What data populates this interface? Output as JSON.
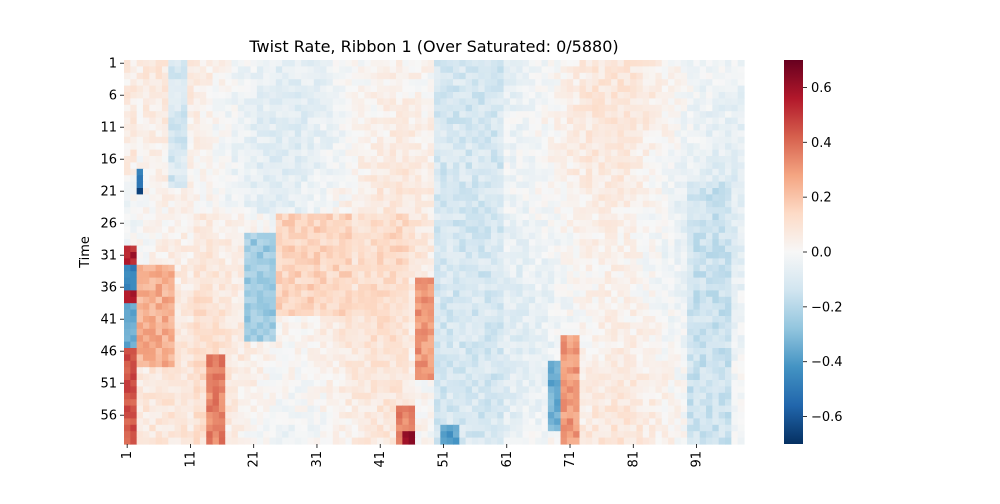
{
  "chart_data": {
    "type": "heatmap",
    "title": "Twist Rate, Ribbon 1 (Over Saturated: 0/5880)",
    "xlabel": "",
    "ylabel": "Time",
    "x_count": 98,
    "y_count": 60,
    "x_ticks": [
      "1",
      "11",
      "21",
      "31",
      "41",
      "51",
      "61",
      "71",
      "81",
      "91"
    ],
    "y_ticks": [
      "1",
      "6",
      "11",
      "16",
      "21",
      "26",
      "31",
      "36",
      "41",
      "46",
      "51",
      "56"
    ],
    "colorbar": {
      "vmin": -0.7,
      "vmax": 0.7,
      "ticks": [
        "−0.6",
        "−0.4",
        "−0.2",
        "0.0",
        "0.2",
        "0.4",
        "0.6"
      ],
      "colormap": "RdBu_r"
    },
    "features": [
      {
        "x": [
          1,
          2
        ],
        "y": [
          1,
          18
        ],
        "value": 0.05
      },
      {
        "x": [
          1,
          2
        ],
        "y": [
          30,
          32
        ],
        "value": 0.55
      },
      {
        "x": [
          1,
          2
        ],
        "y": [
          33,
          36
        ],
        "value": -0.45
      },
      {
        "x": [
          1,
          2
        ],
        "y": [
          37,
          38
        ],
        "value": 0.55
      },
      {
        "x": [
          1,
          2
        ],
        "y": [
          39,
          45
        ],
        "value": -0.35
      },
      {
        "x": [
          1,
          2
        ],
        "y": [
          46,
          60
        ],
        "value": 0.45
      },
      {
        "x": [
          3,
          3
        ],
        "y": [
          18,
          20
        ],
        "value": -0.45
      },
      {
        "x": [
          3,
          3
        ],
        "y": [
          21,
          21
        ],
        "value": -0.7
      },
      {
        "x": [
          3,
          8
        ],
        "y": [
          33,
          48
        ],
        "value": 0.25
      },
      {
        "x": [
          8,
          10
        ],
        "y": [
          1,
          20
        ],
        "value": -0.12
      },
      {
        "x": [
          14,
          16
        ],
        "y": [
          47,
          60
        ],
        "value": 0.35
      },
      {
        "x": [
          20,
          24
        ],
        "y": [
          28,
          44
        ],
        "value": -0.25
      },
      {
        "x": [
          25,
          36
        ],
        "y": [
          25,
          40
        ],
        "value": 0.15
      },
      {
        "x": [
          44,
          46
        ],
        "y": [
          55,
          60
        ],
        "value": 0.35
      },
      {
        "x": [
          45,
          46
        ],
        "y": [
          59,
          60
        ],
        "value": 0.6
      },
      {
        "x": [
          47,
          50
        ],
        "y": [
          35,
          50
        ],
        "value": 0.3
      },
      {
        "x": [
          50,
          60
        ],
        "y": [
          1,
          60
        ],
        "value": -0.12
      },
      {
        "x": [
          51,
          53
        ],
        "y": [
          58,
          60
        ],
        "value": -0.4
      },
      {
        "x": [
          68,
          70
        ],
        "y": [
          48,
          58
        ],
        "value": -0.35
      },
      {
        "x": [
          70,
          72
        ],
        "y": [
          44,
          60
        ],
        "value": 0.3
      },
      {
        "x": [
          90,
          96
        ],
        "y": [
          20,
          60
        ],
        "value": -0.15
      }
    ]
  }
}
